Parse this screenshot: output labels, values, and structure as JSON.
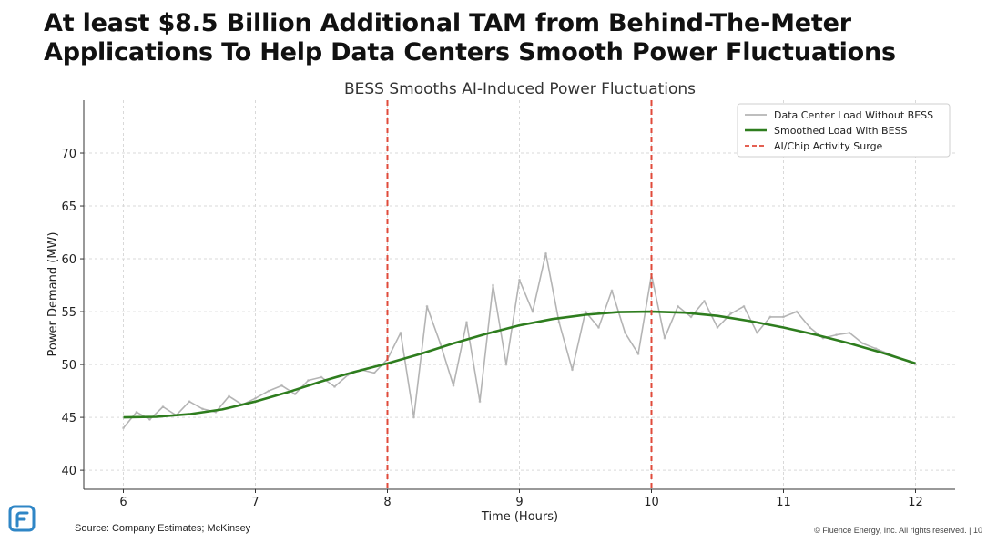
{
  "headline": {
    "line1": "At least $8.5 Billion Additional TAM from Behind-The-Meter",
    "line2": "Applications To Help Data Centers Smooth Power Fluctuations"
  },
  "footer": {
    "source": "Source: Company Estimates; McKinsey",
    "copyright": "© Fluence Energy, Inc. All rights reserved.",
    "page_number": "10"
  },
  "logo": {
    "icon": "fluence-logo-icon",
    "color": "#2f86c6"
  },
  "chart_data": {
    "type": "line",
    "title": "BESS Smooths AI-Induced Power Fluctuations",
    "xlabel": "Time (Hours)",
    "ylabel": "Power Demand (MW)",
    "xlim": [
      5.7,
      12.3
    ],
    "ylim": [
      38.2,
      75.0
    ],
    "x_ticks": [
      6,
      7,
      8,
      9,
      10,
      11,
      12
    ],
    "y_ticks": [
      40,
      45,
      50,
      55,
      60,
      65,
      70
    ],
    "x_tick_labels": [
      "6",
      "7",
      "8",
      "9",
      "10",
      "11",
      "12"
    ],
    "y_tick_labels": [
      "40",
      "45",
      "50",
      "55",
      "60",
      "65",
      "70"
    ],
    "grid": true,
    "legend_position": "top-right",
    "series": [
      {
        "name": "Data Center Load Without BESS",
        "color": "#b4b4b4",
        "style": "solid",
        "x": [
          6.0,
          6.1,
          6.2,
          6.3,
          6.4,
          6.5,
          6.6,
          6.7,
          6.8,
          6.9,
          7.0,
          7.1,
          7.2,
          7.3,
          7.4,
          7.5,
          7.6,
          7.7,
          7.8,
          7.9,
          8.0,
          8.1,
          8.2,
          8.3,
          8.4,
          8.5,
          8.6,
          8.7,
          8.8,
          8.9,
          9.0,
          9.1,
          9.2,
          9.3,
          9.4,
          9.5,
          9.6,
          9.7,
          9.8,
          9.9,
          10.0,
          10.1,
          10.2,
          10.3,
          10.4,
          10.5,
          10.6,
          10.7,
          10.8,
          10.9,
          11.0,
          11.1,
          11.2,
          11.3,
          11.4,
          11.5,
          11.6,
          11.7,
          11.8,
          11.9,
          12.0
        ],
        "values": [
          44.0,
          45.5,
          44.8,
          46.0,
          45.2,
          46.5,
          45.8,
          45.5,
          47.0,
          46.2,
          46.8,
          47.5,
          48.0,
          47.2,
          48.5,
          48.8,
          47.9,
          49.0,
          49.5,
          49.2,
          50.5,
          53.0,
          45.0,
          55.5,
          52.0,
          48.0,
          54.0,
          46.5,
          57.5,
          50.0,
          58.0,
          55.0,
          60.5,
          54.0,
          49.5,
          55.0,
          53.5,
          57.0,
          53.0,
          51.0,
          58.5,
          52.5,
          55.5,
          54.5,
          56.0,
          53.5,
          54.8,
          55.5,
          53.0,
          54.5,
          54.5,
          55.0,
          53.5,
          52.5,
          52.8,
          53.0,
          52.0,
          51.5,
          51.0,
          50.5,
          50.0
        ]
      },
      {
        "name": "Smoothed Load With BESS",
        "color": "#2e7d1e",
        "style": "solid",
        "x": [
          6.0,
          6.25,
          6.5,
          6.75,
          7.0,
          7.25,
          7.5,
          7.75,
          8.0,
          8.25,
          8.5,
          8.75,
          9.0,
          9.25,
          9.5,
          9.75,
          10.0,
          10.25,
          10.5,
          10.75,
          11.0,
          11.25,
          11.5,
          11.75,
          12.0
        ],
        "values": [
          45.0,
          45.05,
          45.3,
          45.75,
          46.5,
          47.4,
          48.4,
          49.3,
          50.1,
          51.0,
          52.0,
          52.9,
          53.7,
          54.3,
          54.7,
          54.95,
          55.0,
          54.9,
          54.6,
          54.1,
          53.5,
          52.8,
          52.0,
          51.1,
          50.1
        ]
      },
      {
        "name": "AI/Chip Activity Surge",
        "color": "#e04a3a",
        "style": "dashed",
        "vlines": [
          8,
          10
        ]
      }
    ]
  }
}
